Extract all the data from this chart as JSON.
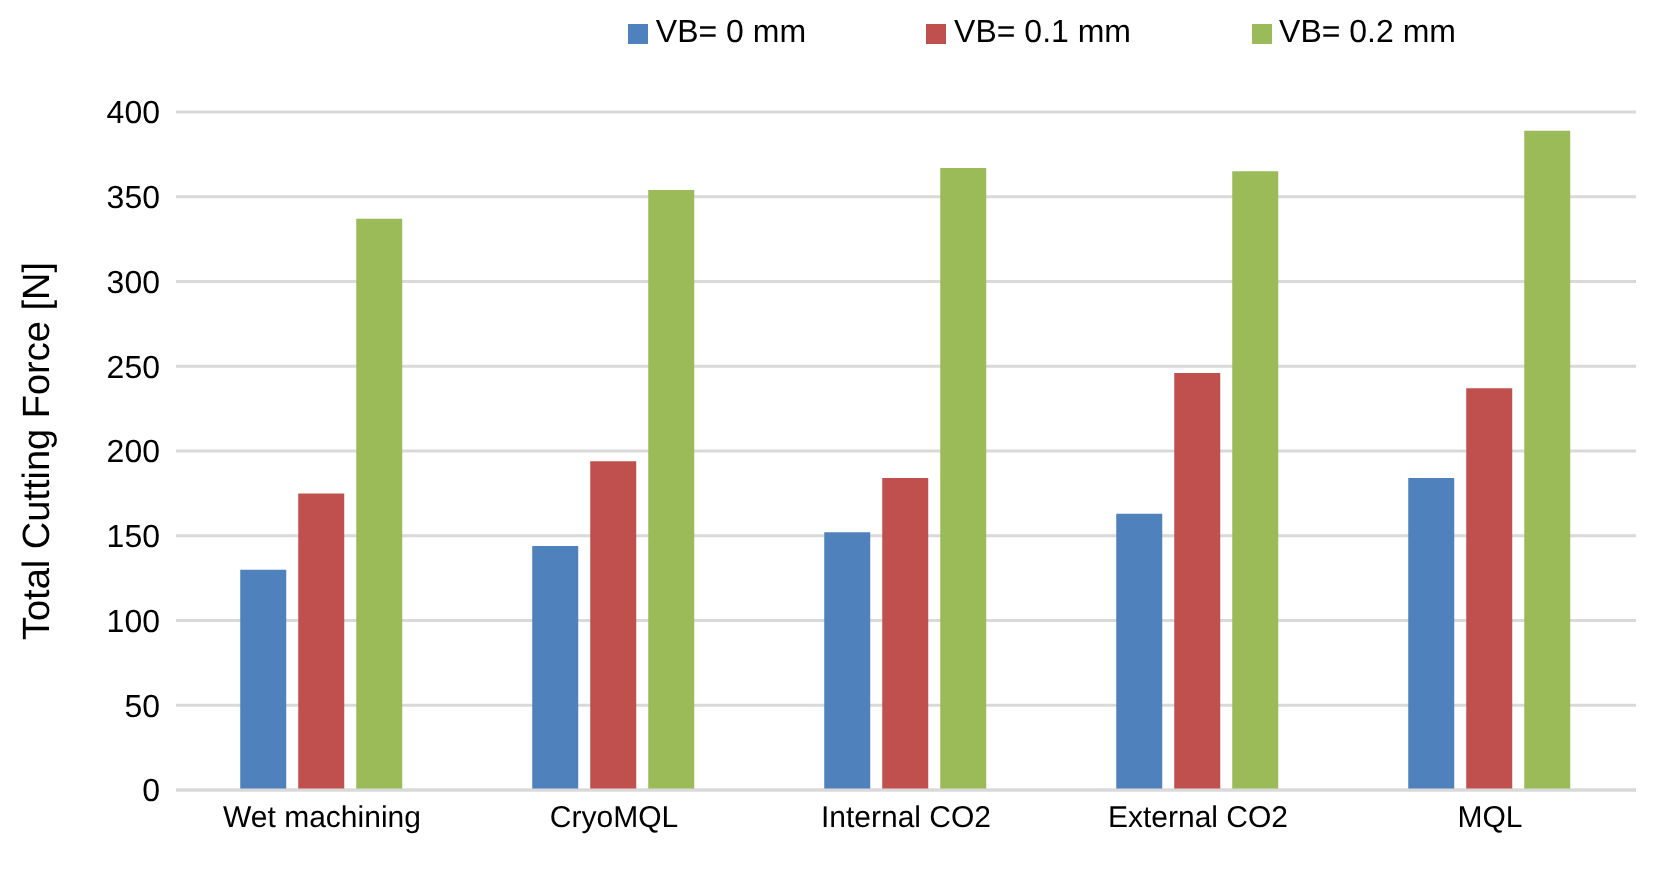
{
  "chart_data": {
    "type": "bar",
    "ylabel": "Total Cutting Force [N]",
    "categories": [
      "Wet machining",
      "CryoMQL",
      "Internal CO2",
      "External CO2",
      "MQL"
    ],
    "series": [
      {
        "name": "VB= 0 mm",
        "color": "#4f81bd",
        "values": [
          130,
          144,
          152,
          163,
          184
        ]
      },
      {
        "name": "VB= 0.1 mm",
        "color": "#c0504d",
        "values": [
          175,
          194,
          184,
          246,
          237
        ]
      },
      {
        "name": "VB= 0.2 mm",
        "color": "#9bbb59",
        "values": [
          337,
          354,
          367,
          365,
          389
        ]
      }
    ],
    "ylim": [
      0,
      400
    ],
    "yticks": [
      0,
      50,
      100,
      150,
      200,
      250,
      300,
      350,
      400
    ],
    "grid": "y",
    "legend": "top right"
  }
}
